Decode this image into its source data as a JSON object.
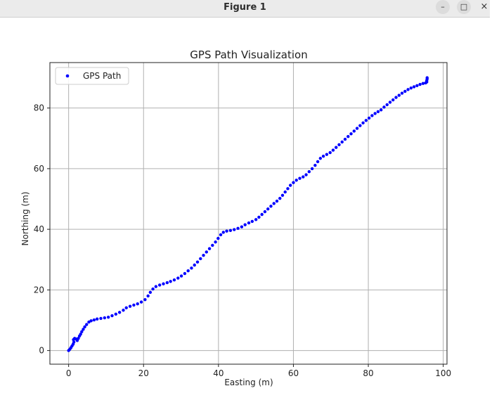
{
  "window": {
    "title": "Figure 1",
    "minimize_glyph": "–",
    "maximize_glyph": "□",
    "close_glyph": "×"
  },
  "chart_data": {
    "type": "scatter",
    "title": "GPS Path Visualization",
    "xlabel": "Easting (m)",
    "ylabel": "Northing (m)",
    "xlim": [
      -5,
      101
    ],
    "ylim": [
      -4.5,
      95
    ],
    "xticks": [
      0,
      20,
      40,
      60,
      80,
      100
    ],
    "yticks": [
      0,
      20,
      40,
      60,
      80
    ],
    "grid": true,
    "legend_position": "top-left",
    "series": [
      {
        "name": "GPS Path",
        "color": "#0000ff",
        "marker": "circle",
        "points": [
          [
            0,
            0
          ],
          [
            0.3,
            0.4
          ],
          [
            0.6,
            0.9
          ],
          [
            0.9,
            1.5
          ],
          [
            1.2,
            2.1
          ],
          [
            1.4,
            2.8
          ],
          [
            1.3,
            3.6
          ],
          [
            1.6,
            4.0
          ],
          [
            2.0,
            3.8
          ],
          [
            2.3,
            3.3
          ],
          [
            2.6,
            4.0
          ],
          [
            2.9,
            4.8
          ],
          [
            3.2,
            5.4
          ],
          [
            3.5,
            6.2
          ],
          [
            3.9,
            7.0
          ],
          [
            4.3,
            7.8
          ],
          [
            4.8,
            8.6
          ],
          [
            5.4,
            9.4
          ],
          [
            6.0,
            9.8
          ],
          [
            6.8,
            10.1
          ],
          [
            7.6,
            10.4
          ],
          [
            8.6,
            10.6
          ],
          [
            9.6,
            10.8
          ],
          [
            10.6,
            11.0
          ],
          [
            11.6,
            11.5
          ],
          [
            12.6,
            12.0
          ],
          [
            13.6,
            12.6
          ],
          [
            14.6,
            13.3
          ],
          [
            15.4,
            14.1
          ],
          [
            16.4,
            14.6
          ],
          [
            17.4,
            15.0
          ],
          [
            18.4,
            15.4
          ],
          [
            19.4,
            16.0
          ],
          [
            20.4,
            16.8
          ],
          [
            21.2,
            18.0
          ],
          [
            21.8,
            19.2
          ],
          [
            22.5,
            20.3
          ],
          [
            23.3,
            21.1
          ],
          [
            24.3,
            21.6
          ],
          [
            25.3,
            22.0
          ],
          [
            26.3,
            22.4
          ],
          [
            27.2,
            22.8
          ],
          [
            28.2,
            23.3
          ],
          [
            29.2,
            23.9
          ],
          [
            30.1,
            24.6
          ],
          [
            31.0,
            25.4
          ],
          [
            31.9,
            26.3
          ],
          [
            32.8,
            27.2
          ],
          [
            33.6,
            28.2
          ],
          [
            34.4,
            29.2
          ],
          [
            35.2,
            30.3
          ],
          [
            36.0,
            31.4
          ],
          [
            36.8,
            32.5
          ],
          [
            37.6,
            33.6
          ],
          [
            38.4,
            34.7
          ],
          [
            39.2,
            35.8
          ],
          [
            39.9,
            37.0
          ],
          [
            40.6,
            38.2
          ],
          [
            41.3,
            39.0
          ],
          [
            42.2,
            39.4
          ],
          [
            43.2,
            39.6
          ],
          [
            44.2,
            39.9
          ],
          [
            45.2,
            40.3
          ],
          [
            46.2,
            40.8
          ],
          [
            47.1,
            41.5
          ],
          [
            48.1,
            42.1
          ],
          [
            49.0,
            42.6
          ],
          [
            50.0,
            43.2
          ],
          [
            50.8,
            44.0
          ],
          [
            51.6,
            44.9
          ],
          [
            52.4,
            45.8
          ],
          [
            53.2,
            46.7
          ],
          [
            54.0,
            47.6
          ],
          [
            54.8,
            48.5
          ],
          [
            55.6,
            49.3
          ],
          [
            56.4,
            50.2
          ],
          [
            57.1,
            51.2
          ],
          [
            57.8,
            52.3
          ],
          [
            58.5,
            53.4
          ],
          [
            59.2,
            54.5
          ],
          [
            60.0,
            55.4
          ],
          [
            60.8,
            56.2
          ],
          [
            61.7,
            56.8
          ],
          [
            62.6,
            57.3
          ],
          [
            63.4,
            58.0
          ],
          [
            64.2,
            59.0
          ],
          [
            65.0,
            60.0
          ],
          [
            65.8,
            61.1
          ],
          [
            66.5,
            62.3
          ],
          [
            67.2,
            63.4
          ],
          [
            68.0,
            64.1
          ],
          [
            68.9,
            64.7
          ],
          [
            69.8,
            65.3
          ],
          [
            70.6,
            66.1
          ],
          [
            71.4,
            67.0
          ],
          [
            72.2,
            67.9
          ],
          [
            73.0,
            68.8
          ],
          [
            73.8,
            69.7
          ],
          [
            74.6,
            70.6
          ],
          [
            75.4,
            71.5
          ],
          [
            76.2,
            72.4
          ],
          [
            77.0,
            73.3
          ],
          [
            77.8,
            74.2
          ],
          [
            78.6,
            75.1
          ],
          [
            79.4,
            75.9
          ],
          [
            80.2,
            76.7
          ],
          [
            81.0,
            77.5
          ],
          [
            81.8,
            78.2
          ],
          [
            82.6,
            78.8
          ],
          [
            83.4,
            79.4
          ],
          [
            84.2,
            80.3
          ],
          [
            85.0,
            81.1
          ],
          [
            85.8,
            81.9
          ],
          [
            86.6,
            82.7
          ],
          [
            87.4,
            83.5
          ],
          [
            88.2,
            84.2
          ],
          [
            89.0,
            84.9
          ],
          [
            89.8,
            85.5
          ],
          [
            90.6,
            86.1
          ],
          [
            91.4,
            86.6
          ],
          [
            92.2,
            87.0
          ],
          [
            93.0,
            87.4
          ],
          [
            93.8,
            87.8
          ],
          [
            94.6,
            88.1
          ],
          [
            95.3,
            88.3
          ],
          [
            95.6,
            88.6
          ],
          [
            95.6,
            89.1
          ],
          [
            95.7,
            89.6
          ],
          [
            95.7,
            90.0
          ]
        ]
      }
    ]
  }
}
